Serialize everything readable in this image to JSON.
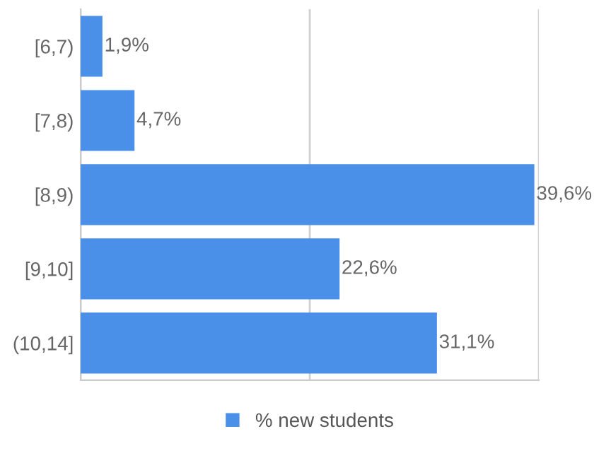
{
  "chart_data": {
    "type": "bar",
    "orientation": "horizontal",
    "categories": [
      "[6,7)",
      "[7,8)",
      "[8,9)",
      "[9,10]",
      "(10,14]"
    ],
    "series": [
      {
        "name": "% new students",
        "color": "#4a8fe8",
        "values": [
          1.9,
          4.7,
          39.6,
          22.6,
          31.1
        ],
        "value_labels": [
          "1,9%",
          "4,7%",
          "39,6%",
          "22,6%",
          "31,1%"
        ]
      }
    ],
    "xlim": [
      0,
      40
    ],
    "xticks": [
      {
        "value": 0,
        "label": null
      },
      {
        "value": 20,
        "label": null
      },
      {
        "value": 40,
        "label": null
      }
    ],
    "tick_labels": "y",
    "grid": "x",
    "legend": "bottom"
  }
}
